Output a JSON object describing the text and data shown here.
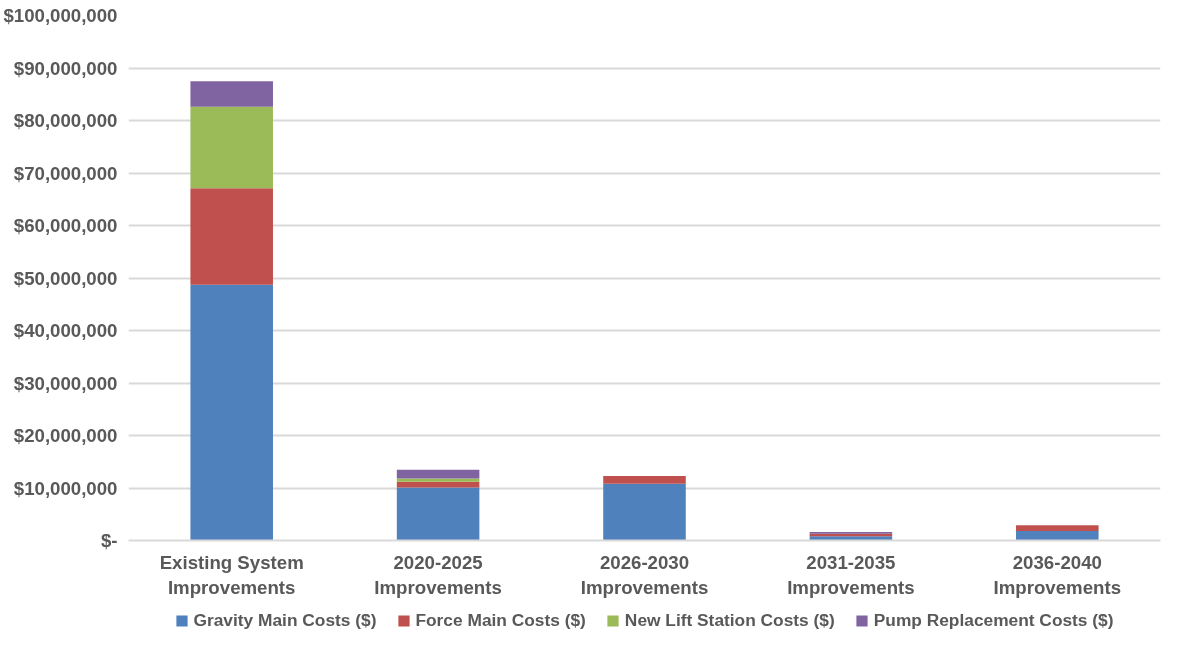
{
  "chart_data": {
    "type": "bar",
    "stacked": true,
    "categories": [
      "Existing System Improvements",
      "2020-2025 Improvements",
      "2026-2030 Improvements",
      "2031-2035 Improvements",
      "2036-2040 Improvements"
    ],
    "series": [
      {
        "name": "Gravity Main Costs ($)",
        "color": "#4f81bd",
        "values": [
          48700000,
          10100000,
          10800000,
          800000,
          1800000
        ]
      },
      {
        "name": "Force Main Costs ($)",
        "color": "#c0504d",
        "values": [
          18400000,
          1100000,
          1500000,
          500000,
          1100000
        ]
      },
      {
        "name": "New Lift Station Costs ($)",
        "color": "#9bbb59",
        "values": [
          15500000,
          600000,
          0,
          0,
          0
        ]
      },
      {
        "name": "Pump Replacement Costs ($)",
        "color": "#8064a2",
        "values": [
          4900000,
          1700000,
          0,
          300000,
          0
        ]
      }
    ],
    "ylim": [
      0,
      100000000
    ],
    "yticks": [
      {
        "value": 0,
        "label": "$-"
      },
      {
        "value": 10000000,
        "label": "$10,000,000"
      },
      {
        "value": 20000000,
        "label": "$20,000,000"
      },
      {
        "value": 30000000,
        "label": "$30,000,000"
      },
      {
        "value": 40000000,
        "label": "$40,000,000"
      },
      {
        "value": 50000000,
        "label": "$50,000,000"
      },
      {
        "value": 60000000,
        "label": "$60,000,000"
      },
      {
        "value": 70000000,
        "label": "$70,000,000"
      },
      {
        "value": 80000000,
        "label": "$80,000,000"
      },
      {
        "value": 90000000,
        "label": "$90,000,000"
      },
      {
        "value": 100000000,
        "label": "$100,000,000"
      }
    ],
    "grid": "y",
    "legend": "bottom"
  }
}
